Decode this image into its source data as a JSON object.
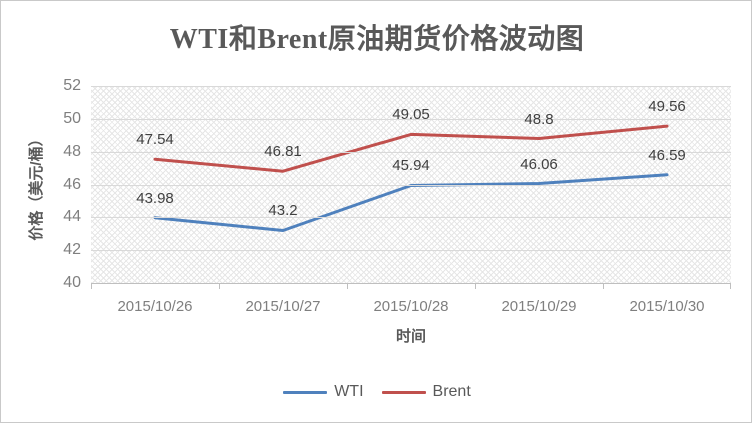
{
  "chart_data": {
    "type": "line",
    "title": "WTI和Brent原油期货价格波动图",
    "xlabel": "时间",
    "ylabel": "价格（美元/桶）",
    "categories": [
      "2015/10/26",
      "2015/10/27",
      "2015/10/28",
      "2015/10/29",
      "2015/10/30"
    ],
    "series": [
      {
        "name": "WTI",
        "color": "#4F81BD",
        "values": [
          43.98,
          43.2,
          45.94,
          46.06,
          46.59
        ]
      },
      {
        "name": "Brent",
        "color": "#C0504D",
        "values": [
          47.54,
          46.81,
          49.05,
          48.8,
          49.56
        ]
      }
    ],
    "ylim": [
      40,
      52
    ],
    "ytick_step": 2,
    "grid": true,
    "plot_fill_pattern": "diagonal-crosshatch",
    "data_labels": true,
    "legend_position": "bottom",
    "colors": {
      "gridline": "#d9d9d9",
      "axis_line": "#bfbfbf",
      "tick_text": "#7f7f7f",
      "data_label_text": "#404040",
      "title_text": "#595959"
    }
  }
}
